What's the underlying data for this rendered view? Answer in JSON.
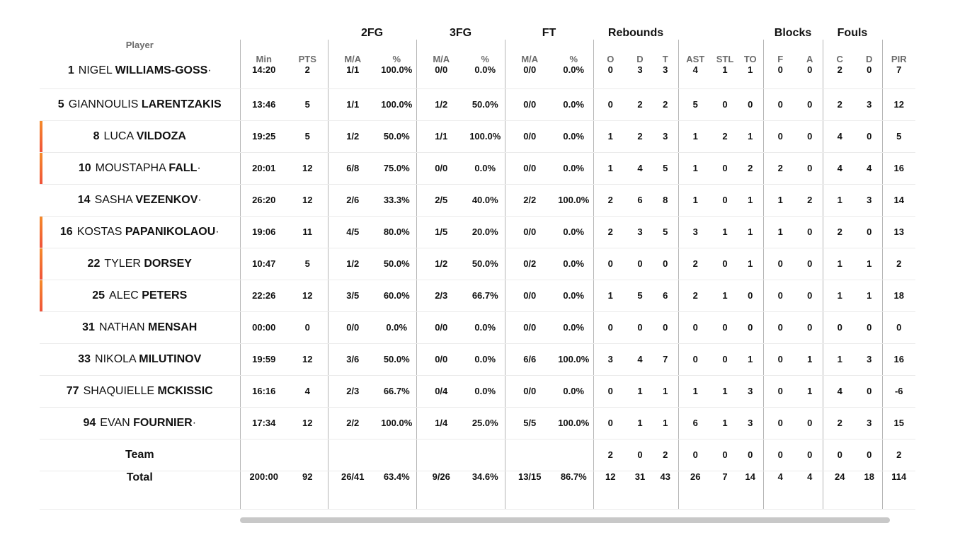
{
  "groups": {
    "fg2": "2FG",
    "fg3": "3FG",
    "ft": "FT",
    "rebounds": "Rebounds",
    "blocks": "Blocks",
    "fouls": "Fouls"
  },
  "columns": {
    "player": "Player",
    "min": "Min",
    "pts": "PTS",
    "fg2_ma": "M/A",
    "fg2_pct": "%",
    "fg3_ma": "M/A",
    "fg3_pct": "%",
    "ft_ma": "M/A",
    "ft_pct": "%",
    "reb_o": "O",
    "reb_d": "D",
    "reb_t": "T",
    "ast": "AST",
    "stl": "STL",
    "to": "TO",
    "blk_f": "F",
    "blk_a": "A",
    "foul_c": "C",
    "foul_d": "D",
    "pir": "PIR"
  },
  "players": [
    {
      "num": "1",
      "first": "NIGEL",
      "last": "WILLIAMS-GOSS",
      "mark": "·",
      "starter": false,
      "min": "14:20",
      "pts": "2",
      "fg2_ma": "1/1",
      "fg2_pct": "100.0%",
      "fg3_ma": "0/0",
      "fg3_pct": "0.0%",
      "ft_ma": "0/0",
      "ft_pct": "0.0%",
      "o": "0",
      "d": "3",
      "t": "3",
      "ast": "4",
      "stl": "1",
      "to": "1",
      "bf": "0",
      "ba": "0",
      "fc": "2",
      "fd": "0",
      "pir": "7"
    },
    {
      "num": "5",
      "first": "GIANNOULIS",
      "last": "LARENTZAKIS",
      "mark": "",
      "starter": false,
      "min": "13:46",
      "pts": "5",
      "fg2_ma": "1/1",
      "fg2_pct": "100.0%",
      "fg3_ma": "1/2",
      "fg3_pct": "50.0%",
      "ft_ma": "0/0",
      "ft_pct": "0.0%",
      "o": "0",
      "d": "2",
      "t": "2",
      "ast": "5",
      "stl": "0",
      "to": "0",
      "bf": "0",
      "ba": "0",
      "fc": "2",
      "fd": "3",
      "pir": "12"
    },
    {
      "num": "8",
      "first": "LUCA",
      "last": "VILDOZA",
      "mark": "",
      "starter": true,
      "min": "19:25",
      "pts": "5",
      "fg2_ma": "1/2",
      "fg2_pct": "50.0%",
      "fg3_ma": "1/1",
      "fg3_pct": "100.0%",
      "ft_ma": "0/0",
      "ft_pct": "0.0%",
      "o": "1",
      "d": "2",
      "t": "3",
      "ast": "1",
      "stl": "2",
      "to": "1",
      "bf": "0",
      "ba": "0",
      "fc": "4",
      "fd": "0",
      "pir": "5"
    },
    {
      "num": "10",
      "first": "MOUSTAPHA",
      "last": "FALL",
      "mark": "·",
      "starter": true,
      "min": "20:01",
      "pts": "12",
      "fg2_ma": "6/8",
      "fg2_pct": "75.0%",
      "fg3_ma": "0/0",
      "fg3_pct": "0.0%",
      "ft_ma": "0/0",
      "ft_pct": "0.0%",
      "o": "1",
      "d": "4",
      "t": "5",
      "ast": "1",
      "stl": "0",
      "to": "2",
      "bf": "2",
      "ba": "0",
      "fc": "4",
      "fd": "4",
      "pir": "16"
    },
    {
      "num": "14",
      "first": "SASHA",
      "last": "VEZENKOV",
      "mark": "·",
      "starter": false,
      "min": "26:20",
      "pts": "12",
      "fg2_ma": "2/6",
      "fg2_pct": "33.3%",
      "fg3_ma": "2/5",
      "fg3_pct": "40.0%",
      "ft_ma": "2/2",
      "ft_pct": "100.0%",
      "o": "2",
      "d": "6",
      "t": "8",
      "ast": "1",
      "stl": "0",
      "to": "1",
      "bf": "1",
      "ba": "2",
      "fc": "1",
      "fd": "3",
      "pir": "14"
    },
    {
      "num": "16",
      "first": "KOSTAS",
      "last": "PAPANIKOLAOU",
      "mark": "·",
      "starter": true,
      "min": "19:06",
      "pts": "11",
      "fg2_ma": "4/5",
      "fg2_pct": "80.0%",
      "fg3_ma": "1/5",
      "fg3_pct": "20.0%",
      "ft_ma": "0/0",
      "ft_pct": "0.0%",
      "o": "2",
      "d": "3",
      "t": "5",
      "ast": "3",
      "stl": "1",
      "to": "1",
      "bf": "1",
      "ba": "0",
      "fc": "2",
      "fd": "0",
      "pir": "13"
    },
    {
      "num": "22",
      "first": "TYLER",
      "last": "DORSEY",
      "mark": "",
      "starter": true,
      "min": "10:47",
      "pts": "5",
      "fg2_ma": "1/2",
      "fg2_pct": "50.0%",
      "fg3_ma": "1/2",
      "fg3_pct": "50.0%",
      "ft_ma": "0/2",
      "ft_pct": "0.0%",
      "o": "0",
      "d": "0",
      "t": "0",
      "ast": "2",
      "stl": "0",
      "to": "1",
      "bf": "0",
      "ba": "0",
      "fc": "1",
      "fd": "1",
      "pir": "2"
    },
    {
      "num": "25",
      "first": "ALEC",
      "last": "PETERS",
      "mark": "",
      "starter": true,
      "min": "22:26",
      "pts": "12",
      "fg2_ma": "3/5",
      "fg2_pct": "60.0%",
      "fg3_ma": "2/3",
      "fg3_pct": "66.7%",
      "ft_ma": "0/0",
      "ft_pct": "0.0%",
      "o": "1",
      "d": "5",
      "t": "6",
      "ast": "2",
      "stl": "1",
      "to": "0",
      "bf": "0",
      "ba": "0",
      "fc": "1",
      "fd": "1",
      "pir": "18"
    },
    {
      "num": "31",
      "first": "NATHAN",
      "last": "MENSAH",
      "mark": "",
      "starter": false,
      "min": "00:00",
      "pts": "0",
      "fg2_ma": "0/0",
      "fg2_pct": "0.0%",
      "fg3_ma": "0/0",
      "fg3_pct": "0.0%",
      "ft_ma": "0/0",
      "ft_pct": "0.0%",
      "o": "0",
      "d": "0",
      "t": "0",
      "ast": "0",
      "stl": "0",
      "to": "0",
      "bf": "0",
      "ba": "0",
      "fc": "0",
      "fd": "0",
      "pir": "0"
    },
    {
      "num": "33",
      "first": "NIKOLA",
      "last": "MILUTINOV",
      "mark": "",
      "starter": false,
      "min": "19:59",
      "pts": "12",
      "fg2_ma": "3/6",
      "fg2_pct": "50.0%",
      "fg3_ma": "0/0",
      "fg3_pct": "0.0%",
      "ft_ma": "6/6",
      "ft_pct": "100.0%",
      "o": "3",
      "d": "4",
      "t": "7",
      "ast": "0",
      "stl": "0",
      "to": "1",
      "bf": "0",
      "ba": "1",
      "fc": "1",
      "fd": "3",
      "pir": "16"
    },
    {
      "num": "77",
      "first": "SHAQUIELLE",
      "last": "MCKISSIC",
      "mark": "",
      "starter": false,
      "min": "16:16",
      "pts": "4",
      "fg2_ma": "2/3",
      "fg2_pct": "66.7%",
      "fg3_ma": "0/4",
      "fg3_pct": "0.0%",
      "ft_ma": "0/0",
      "ft_pct": "0.0%",
      "o": "0",
      "d": "1",
      "t": "1",
      "ast": "1",
      "stl": "1",
      "to": "3",
      "bf": "0",
      "ba": "1",
      "fc": "4",
      "fd": "0",
      "pir": "-6"
    },
    {
      "num": "94",
      "first": "EVAN",
      "last": "FOURNIER",
      "mark": "·",
      "starter": false,
      "min": "17:34",
      "pts": "12",
      "fg2_ma": "2/2",
      "fg2_pct": "100.0%",
      "fg3_ma": "1/4",
      "fg3_pct": "25.0%",
      "ft_ma": "5/5",
      "ft_pct": "100.0%",
      "o": "0",
      "d": "1",
      "t": "1",
      "ast": "6",
      "stl": "1",
      "to": "3",
      "bf": "0",
      "ba": "0",
      "fc": "2",
      "fd": "3",
      "pir": "15"
    }
  ],
  "team": {
    "label": "Team",
    "min": "",
    "pts": "",
    "fg2_ma": "",
    "fg2_pct": "",
    "fg3_ma": "",
    "fg3_pct": "",
    "ft_ma": "",
    "ft_pct": "",
    "o": "2",
    "d": "0",
    "t": "2",
    "ast": "0",
    "stl": "0",
    "to": "0",
    "bf": "0",
    "ba": "0",
    "fc": "0",
    "fd": "0",
    "pir": "2"
  },
  "total": {
    "label": "Total",
    "min": "200:00",
    "pts": "92",
    "fg2_ma": "26/41",
    "fg2_pct": "63.4%",
    "fg3_ma": "9/26",
    "fg3_pct": "34.6%",
    "ft_ma": "13/15",
    "ft_pct": "86.7%",
    "o": "12",
    "d": "31",
    "t": "43",
    "ast": "26",
    "stl": "7",
    "to": "14",
    "bf": "4",
    "ba": "4",
    "fc": "24",
    "fd": "18",
    "pir": "114"
  },
  "colors": {
    "starter_accent_top": "#f48a2a",
    "starter_accent_bottom": "#f0533a",
    "separator": "#b5b5b5",
    "row_border": "#ebebeb"
  }
}
